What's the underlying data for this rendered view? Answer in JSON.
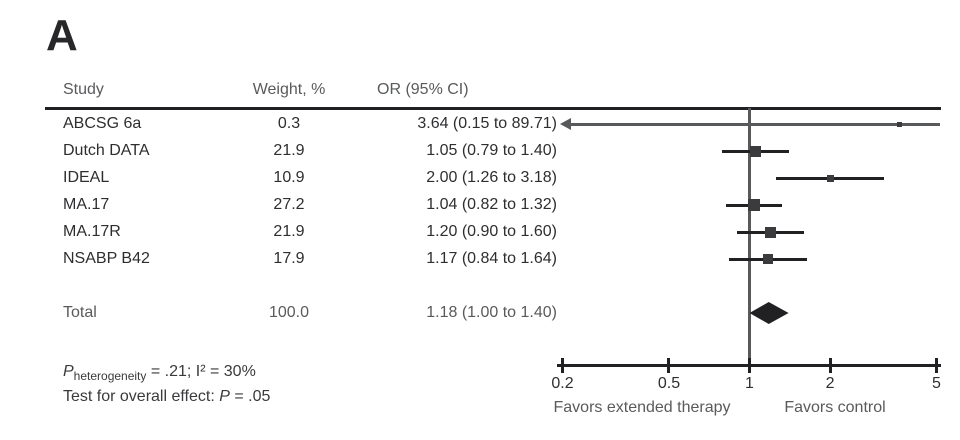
{
  "chart_data": {
    "type": "forest",
    "panel_label": "A",
    "columns": {
      "study": "Study",
      "weight": "Weight, %",
      "or_ci": "OR (95% CI)"
    },
    "studies": [
      {
        "study": "ABCSG 6a",
        "weight": "0.3",
        "weight_value": 0.3,
        "or_ci": "3.64 (0.15 to 89.71)",
        "or": 3.64,
        "ci_low": 0.15,
        "ci_high": 89.71
      },
      {
        "study": "Dutch DATA",
        "weight": "21.9",
        "weight_value": 21.9,
        "or_ci": "1.05 (0.79 to 1.40)",
        "or": 1.05,
        "ci_low": 0.79,
        "ci_high": 1.4
      },
      {
        "study": "IDEAL",
        "weight": "10.9",
        "weight_value": 10.9,
        "or_ci": "2.00 (1.26 to 3.18)",
        "or": 2.0,
        "ci_low": 1.26,
        "ci_high": 3.18
      },
      {
        "study": "MA.17",
        "weight": "27.2",
        "weight_value": 27.2,
        "or_ci": "1.04 (0.82 to 1.32)",
        "or": 1.04,
        "ci_low": 0.82,
        "ci_high": 1.32
      },
      {
        "study": "MA.17R",
        "weight": "21.9",
        "weight_value": 21.9,
        "or_ci": "1.20 (0.90 to 1.60)",
        "or": 1.2,
        "ci_low": 0.9,
        "ci_high": 1.6
      },
      {
        "study": "NSABP B42",
        "weight": "17.9",
        "weight_value": 17.9,
        "or_ci": "1.17 (0.84 to 1.64)",
        "or": 1.17,
        "ci_low": 0.84,
        "ci_high": 1.64
      }
    ],
    "total": {
      "label": "Total",
      "weight": "100.0",
      "weight_value": 100.0,
      "or_ci": "1.18 (1.00 to 1.40)",
      "or": 1.18,
      "ci_low": 1.0,
      "ci_high": 1.4
    },
    "axis": {
      "scale": "log",
      "min": 0.2,
      "max": 5,
      "reference_line": 1,
      "ticks": [
        0.2,
        0.5,
        1,
        2,
        5
      ],
      "tick_labels": [
        "0.2",
        "0.5",
        "1",
        "2",
        "5"
      ],
      "left_label": "Favors extended therapy",
      "right_label": "Favors control"
    },
    "footnotes": {
      "heterogeneity": {
        "p": "P",
        "sub": "heterogeneity",
        "rest": " = .21; I² = 30%"
      },
      "overall": {
        "prefix": "Test for overall effect: ",
        "p": "P",
        "rest": " = .05"
      }
    },
    "colors": {
      "line_black": "#212123",
      "line_gray": "#58595b",
      "marker": "#3b3b3d",
      "diamond": "#212123",
      "text_dark": "#2e2e30",
      "text_gray": "#595a5c"
    }
  }
}
